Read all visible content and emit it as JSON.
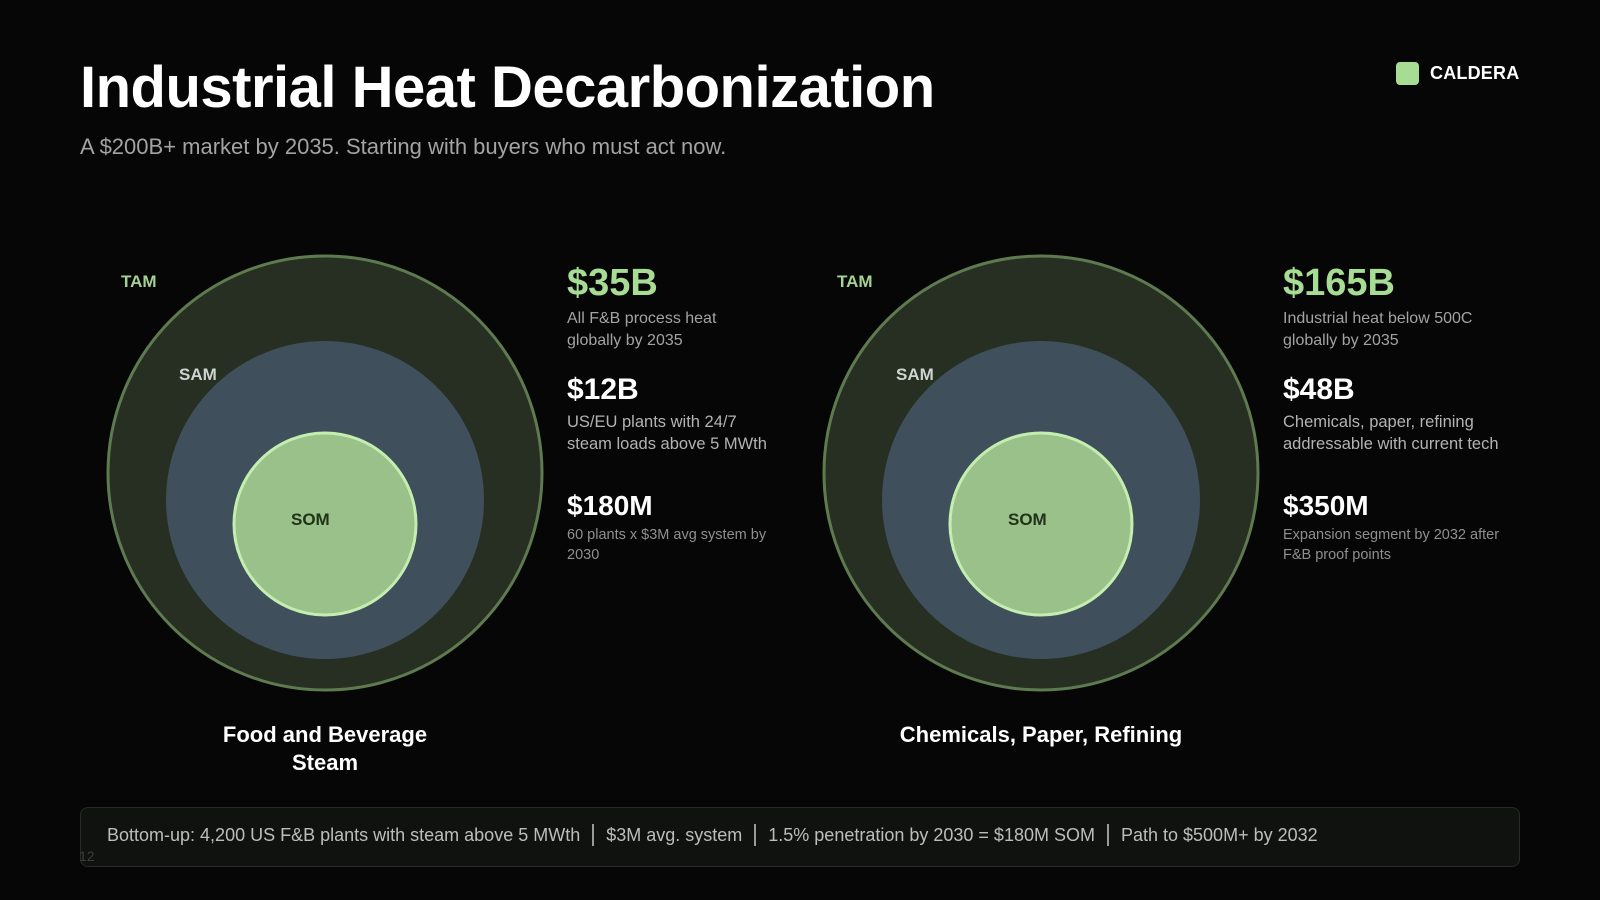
{
  "header": {
    "title": "Industrial Heat Decarbonization",
    "subtitle": "A $200B+ market by 2035. Starting with buyers who must act now."
  },
  "brand": {
    "name": "CALDERA",
    "color": "#a6dc94"
  },
  "colors": {
    "background": "#060606",
    "tam_fill": "#262f22",
    "tam_stroke": "#5e7a4f",
    "sam_fill": "#3f4f5b",
    "som_fill": "#9ac18a",
    "som_stroke": "#c4eeb0",
    "accent": "#a6dc94"
  },
  "segments": [
    {
      "caption_line1": "Food and Beverage",
      "caption_line2": "Steam",
      "rings": {
        "tam": "TAM",
        "sam": "SAM",
        "som": "SOM"
      },
      "tam": {
        "value": "$35B",
        "desc_line1": "All F&B process heat",
        "desc_line2": "globally by 2035"
      },
      "sam": {
        "value": "$12B",
        "desc_line1": "US/EU plants with 24/7",
        "desc_line2": "steam loads above 5 MWth"
      },
      "som": {
        "value": "$180M",
        "desc_line1": "60 plants x $3M avg system by",
        "desc_line2": "2030"
      }
    },
    {
      "caption_line1": "Chemicals, Paper, Refining",
      "caption_line2": "",
      "rings": {
        "tam": "TAM",
        "sam": "SAM",
        "som": "SOM"
      },
      "tam": {
        "value": "$165B",
        "desc_line1": "Industrial heat below 500C",
        "desc_line2": "globally by 2035"
      },
      "sam": {
        "value": "$48B",
        "desc_line1": "Chemicals, paper, refining",
        "desc_line2": "addressable with current tech"
      },
      "som": {
        "value": "$350M",
        "desc_line1": "Expansion segment by 2032 after",
        "desc_line2": "F&B proof points"
      }
    }
  ],
  "footer": {
    "items": [
      "Bottom-up: 4,200 US F&B plants with steam above 5 MWth",
      "$3M avg. system",
      "1.5% penetration by 2030 = $180M SOM",
      "Path to $500M+ by 2032"
    ],
    "page_number": "12"
  }
}
